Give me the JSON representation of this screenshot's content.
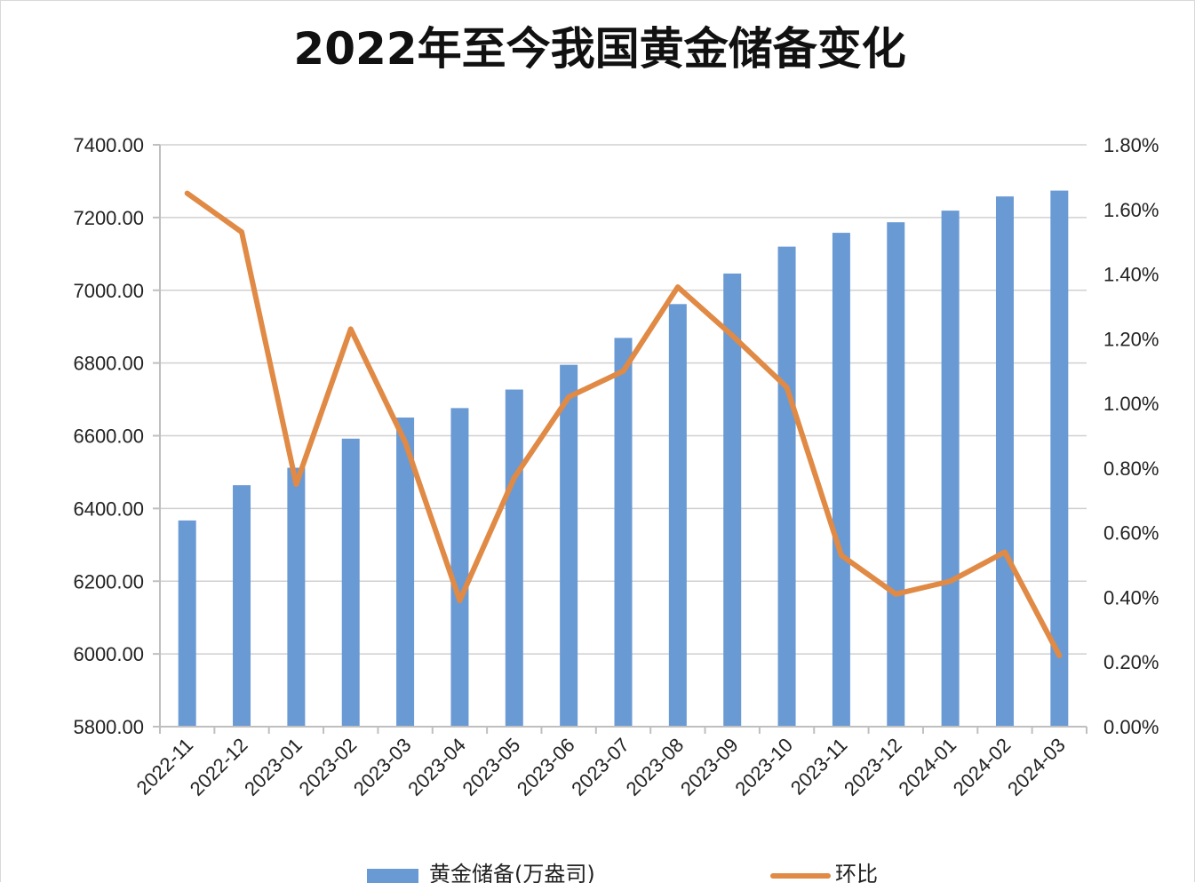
{
  "chart_data": {
    "type": "bar",
    "title": "2022年至今我国黄金储备变化",
    "categories": [
      "2022-11",
      "2022-12",
      "2023-01",
      "2023-02",
      "2023-03",
      "2023-04",
      "2023-05",
      "2023-06",
      "2023-07",
      "2023-08",
      "2023-09",
      "2023-10",
      "2023-11",
      "2023-12",
      "2024-01",
      "2024-02",
      "2024-03"
    ],
    "series": [
      {
        "name": "黄金储备(万盎司)",
        "type": "bar",
        "axis": "left",
        "color": "#6a9ad4",
        "values": [
          6367,
          6464,
          6512,
          6592,
          6650,
          6676,
          6727,
          6795,
          6869,
          6962,
          7046,
          7120,
          7158,
          7187,
          7219,
          7258,
          7274
        ]
      },
      {
        "name": "环比",
        "type": "line",
        "axis": "right",
        "color": "#e08a45",
        "values": [
          1.65,
          1.53,
          0.75,
          1.23,
          0.88,
          0.39,
          0.77,
          1.02,
          1.1,
          1.36,
          1.21,
          1.05,
          0.53,
          0.41,
          0.45,
          0.54,
          0.22
        ]
      }
    ],
    "y_left": {
      "min": 5800,
      "max": 7400,
      "step": 200,
      "ticks": [
        "7400.00",
        "7200.00",
        "7000.00",
        "6800.00",
        "6600.00",
        "6400.00",
        "6200.00",
        "6000.00",
        "5800.00"
      ]
    },
    "y_right": {
      "min": 0,
      "max": 1.8,
      "step": 0.2,
      "ticks": [
        "1.80%",
        "1.60%",
        "1.40%",
        "1.20%",
        "1.00%",
        "0.80%",
        "0.60%",
        "0.40%",
        "0.20%",
        "0.00%"
      ]
    },
    "grid": true,
    "legend_position": "bottom",
    "gridline_color": "#d0d0d0",
    "axis_color": "#bfbfbf"
  }
}
